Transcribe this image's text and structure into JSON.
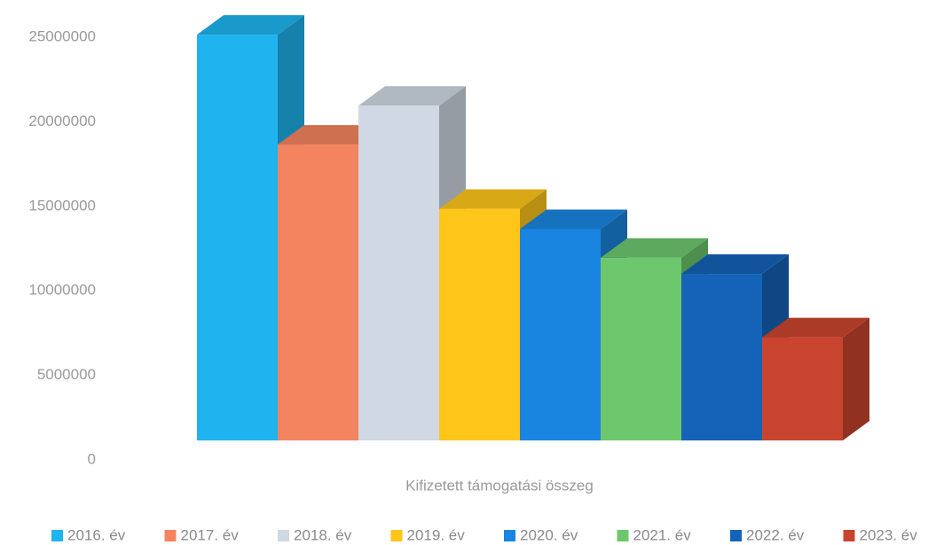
{
  "chart_data": {
    "type": "bar3d",
    "categories": [
      "Kifizetett támogatási összeg"
    ],
    "series": [
      {
        "name": "2016. év",
        "color": "#1fb4ef",
        "values": [
          24000000
        ]
      },
      {
        "name": "2017. év",
        "color": "#f4845f",
        "values": [
          17500000
        ]
      },
      {
        "name": "2018. év",
        "color": "#cfd8e3",
        "values": [
          19800000
        ]
      },
      {
        "name": "2019. év",
        "color": "#ffc61a",
        "values": [
          13700000
        ]
      },
      {
        "name": "2020. év",
        "color": "#1a85e0",
        "values": [
          12500000
        ]
      },
      {
        "name": "2021. év",
        "color": "#6dc76d",
        "values": [
          10800000
        ]
      },
      {
        "name": "2022. év",
        "color": "#1563b8",
        "values": [
          9850000
        ]
      },
      {
        "name": "2023. év",
        "color": "#c9442e",
        "values": [
          6100000
        ]
      }
    ],
    "ylim": [
      0,
      25000000
    ],
    "yticks": [
      0,
      5000000,
      10000000,
      15000000,
      20000000,
      25000000
    ],
    "legend": "bottom"
  }
}
